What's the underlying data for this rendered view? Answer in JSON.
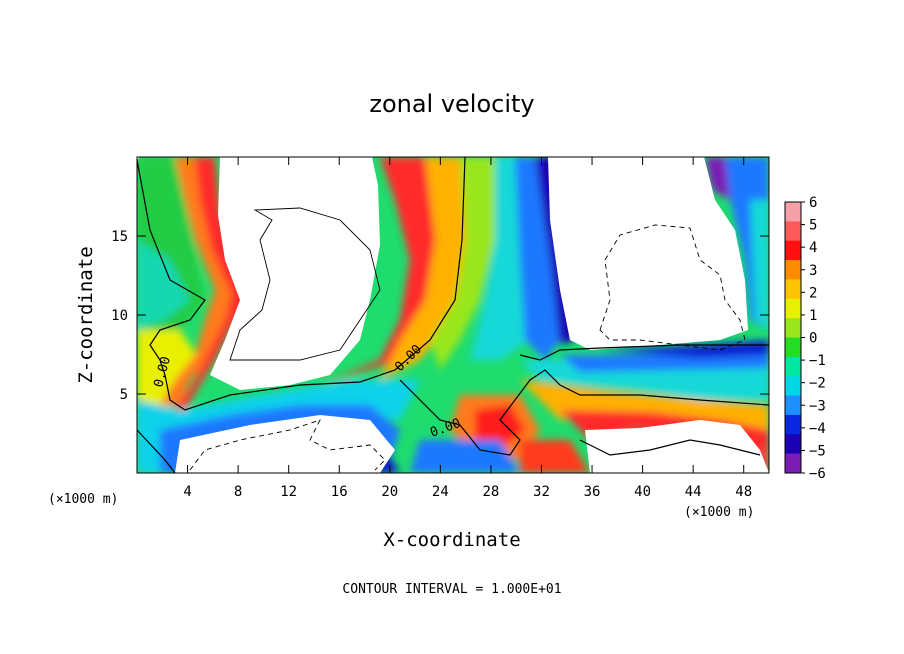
{
  "chart_data": {
    "type": "heatmap",
    "title": "zonal velocity",
    "xlabel": "X-coordinate",
    "ylabel": "Z-coordinate",
    "x_unit_label": "(×1000 m)",
    "footer": "CONTOUR INTERVAL = 1.000E+01",
    "xlim": [
      0,
      50
    ],
    "ylim": [
      0,
      20
    ],
    "x_ticks": [
      4,
      8,
      12,
      16,
      20,
      24,
      28,
      32,
      36,
      40,
      44,
      48
    ],
    "y_ticks": [
      5,
      10,
      15
    ],
    "colorbar": {
      "ticks": [
        6,
        5,
        4,
        3,
        2,
        1,
        0,
        -1,
        -2,
        -3,
        -4,
        -5,
        -6
      ],
      "colors_top_to_bottom": [
        "#f6a0a8",
        "#ff5a5a",
        "#ff1010",
        "#ff8c00",
        "#ffc400",
        "#e6f000",
        "#9ae61c",
        "#22dd22",
        "#00e8a0",
        "#00d8e8",
        "#1e90ff",
        "#0a28e0",
        "#1c00b4",
        "#7c1cb4"
      ]
    },
    "contour_labels": [
      "0.00",
      "0.00",
      "0.00"
    ]
  }
}
